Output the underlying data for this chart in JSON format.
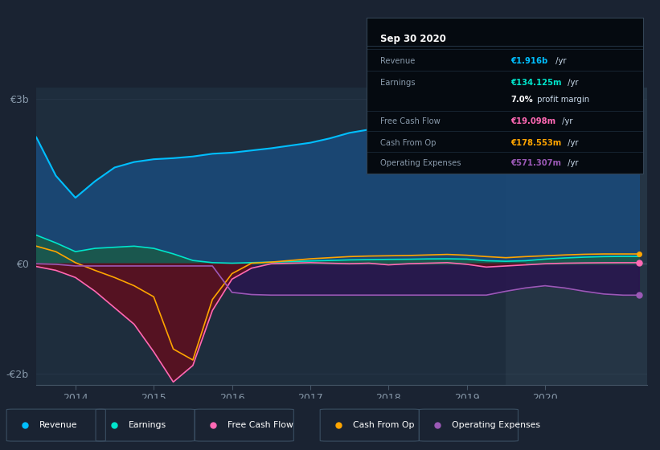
{
  "bg_color": "#1a2332",
  "plot_bg_color": "#1e2d3d",
  "axis_label_color": "#8899aa",
  "zero_line_color": "#445566",
  "highlight_region": [
    2019.5,
    2021.3
  ],
  "highlight_color": "#253545",
  "revenue_color": "#00bfff",
  "earnings_color": "#00e5cc",
  "fcf_color": "#ff69b4",
  "cashfromop_color": "#ffa500",
  "opex_color": "#9b59b6",
  "revenue_fill": "#1a4a7a",
  "earnings_fill": "#1a5a4a",
  "opex_fill": "#2a1450",
  "fcf_fill": "#5a1020",
  "ylim": [
    -2200000000.0,
    3200000000.0
  ],
  "xlim": [
    2013.5,
    2021.3
  ],
  "xticks": [
    2014,
    2015,
    2016,
    2017,
    2018,
    2019,
    2020
  ],
  "yticks": [
    -2000000000.0,
    0,
    3000000000.0
  ],
  "ytick_labels": [
    "-€2b",
    "€0",
    "€3b"
  ],
  "info_title": "Sep 30 2020",
  "info_rows": [
    {
      "label": "Revenue",
      "value": "€1.916b",
      "suffix": " /yr",
      "color": "#00bfff"
    },
    {
      "label": "Earnings",
      "value": "€134.125m",
      "suffix": " /yr",
      "color": "#00e5cc"
    },
    {
      "label": "",
      "value": "7.0%",
      "suffix": " profit margin",
      "color": "#ffffff"
    },
    {
      "label": "Free Cash Flow",
      "value": "€19.098m",
      "suffix": " /yr",
      "color": "#ff69b4"
    },
    {
      "label": "Cash From Op",
      "value": "€178.553m",
      "suffix": " /yr",
      "color": "#ffa500"
    },
    {
      "label": "Operating Expenses",
      "value": "€571.307m",
      "suffix": " /yr",
      "color": "#9b59b6"
    }
  ],
  "legend_items": [
    {
      "label": "Revenue",
      "color": "#00bfff"
    },
    {
      "label": "Earnings",
      "color": "#00e5cc"
    },
    {
      "label": "Free Cash Flow",
      "color": "#ff69b4"
    },
    {
      "label": "Cash From Op",
      "color": "#ffa500"
    },
    {
      "label": "Operating Expenses",
      "color": "#9b59b6"
    }
  ]
}
